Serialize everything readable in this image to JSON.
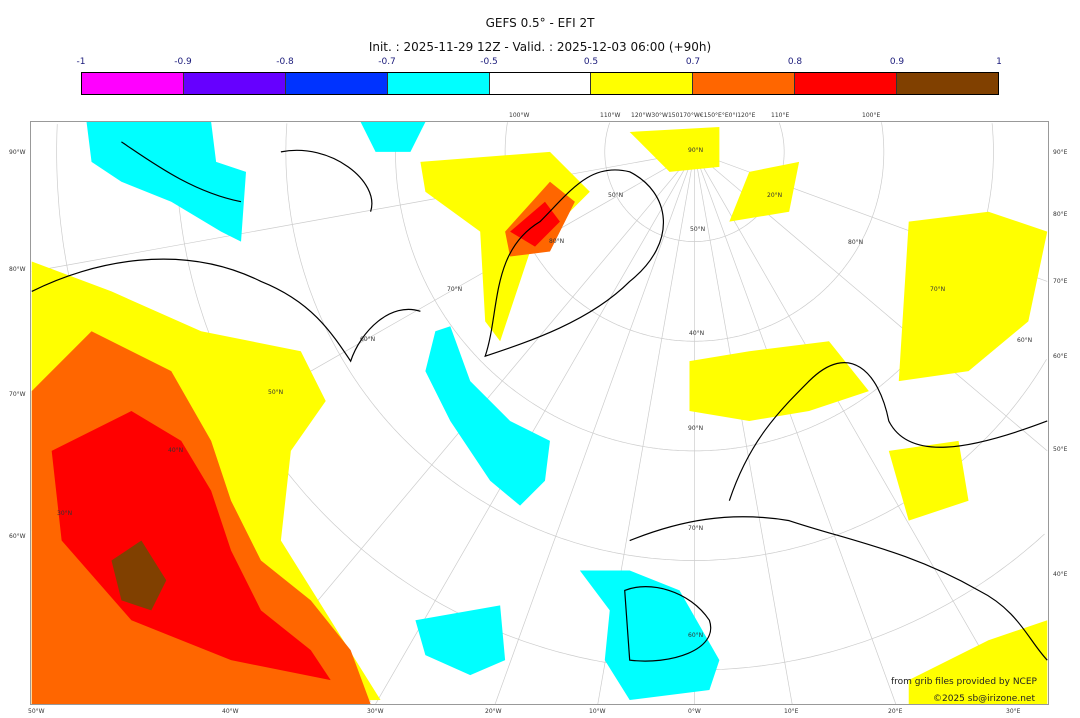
{
  "title": "GEFS 0.5° - EFI 2T",
  "subtitle": "Init. : 2025-11-29 12Z - Valid. : 2025-12-03 06:00 (+90h)",
  "colorbar": {
    "ticks": [
      "-1",
      "-0.9",
      "-0.8",
      "-0.7",
      "-0.5",
      "0.5",
      "0.7",
      "0.8",
      "0.9",
      "1"
    ],
    "colors": [
      "#ff00ff",
      "#6600ff",
      "#0033ff",
      "#00ffff",
      "#ffffff",
      "#ffff00",
      "#ff6600",
      "#ff0000",
      "#804000"
    ]
  },
  "axes": {
    "left": [
      "90°W",
      "80°W",
      "70°W",
      "60°W"
    ],
    "right": [
      "90°E",
      "80°E",
      "70°E",
      "60°E",
      "50°E",
      "40°E"
    ],
    "bottom": [
      "50°W",
      "40°W",
      "30°W",
      "20°W",
      "10°W",
      "0°W",
      "10°E",
      "20°E",
      "30°E"
    ],
    "top": [
      "100°W",
      "110°W",
      "120°W30°W150170°W€150°E°E0°I120°E",
      "110°E",
      "100°E"
    ],
    "lat_labels": [
      "90°N",
      "80°N",
      "70°N",
      "60°N",
      "50°N",
      "40°N",
      "30°N",
      "20°N",
      "80°N",
      "70°N",
      "60°N",
      "50°N",
      "40°N",
      "90°N",
      "70°N",
      "60°N",
      "50°N"
    ]
  },
  "credits": {
    "source": "from grib files provided by NCEP",
    "copyright": "©2025 sb@irizone.net"
  }
}
